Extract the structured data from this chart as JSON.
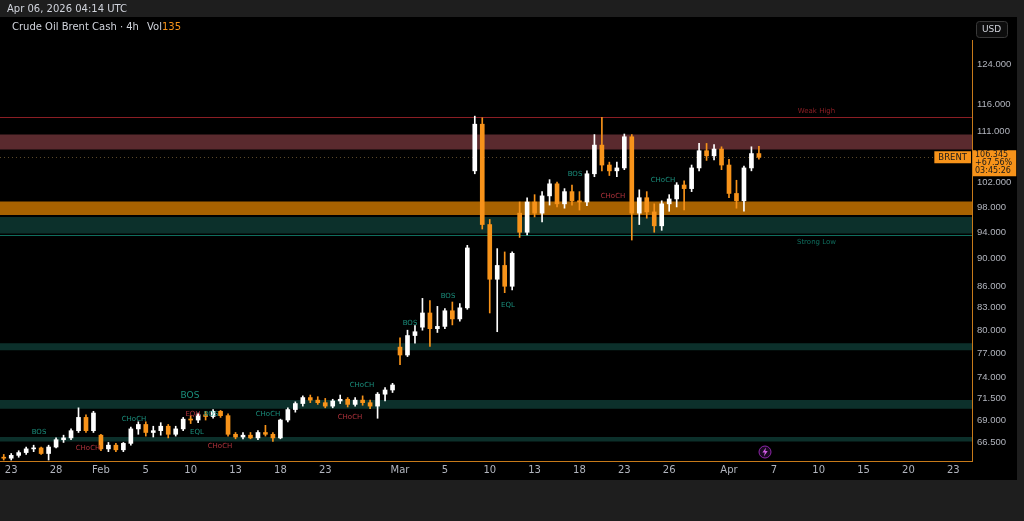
{
  "chart_data": {
    "type": "candlestick",
    "title": "Crude Oil Brent Cash · 4h",
    "ylabel": "USD",
    "annotations": [
      "Apr 06, 2026 04:14 UTC",
      "Vol",
      "135",
      "BOS",
      "CHoCH",
      "CHoCH",
      "BOS",
      "EQH",
      "BOS",
      "EQL",
      "CHoCH",
      "CHoCH",
      "CHoCH",
      "CHoCH",
      "BOS",
      "BOS",
      "EQL",
      "BOS",
      "CHoCH",
      "CHoCH",
      "106.345",
      "+67.56%",
      "03:45:26"
    ],
    "categories": [
      null,
      "23",
      null,
      null,
      null,
      null,
      null,
      "28",
      null,
      null,
      null,
      null,
      null,
      "Feb",
      null,
      null,
      null,
      null,
      null,
      "5",
      null,
      null,
      null,
      null,
      null,
      "10",
      null,
      null,
      null,
      null,
      null,
      "13",
      null,
      null,
      null,
      null,
      null,
      "18",
      null,
      null,
      null,
      null,
      null,
      "23",
      null,
      null,
      null,
      null,
      null,
      null,
      null,
      null,
      null,
      "Mar",
      null,
      null,
      null,
      null,
      null,
      "5",
      null,
      null,
      null,
      null,
      null,
      "10",
      null,
      null,
      null,
      null,
      null,
      "13",
      null,
      null,
      null,
      null,
      null,
      "18",
      null,
      null,
      null,
      null,
      null,
      "23",
      null,
      null,
      null,
      null,
      null,
      "26",
      null,
      null,
      null,
      null,
      null,
      null,
      null,
      "Apr",
      null,
      null,
      null,
      null,
      null,
      "7",
      null,
      null,
      null,
      null,
      null,
      "10",
      null,
      null,
      null,
      null,
      null,
      "15",
      null,
      null,
      null,
      null,
      null,
      "20",
      null,
      null,
      null,
      null,
      null,
      "23",
      null,
      null
    ],
    "ohlc": [
      [
        64.9,
        65.2,
        64.6,
        64.8
      ],
      [
        64.8,
        65.3,
        64.6,
        65.1
      ],
      [
        65.1,
        65.6,
        64.9,
        65.4
      ],
      [
        65.4,
        66.0,
        65.2,
        65.8
      ],
      [
        65.8,
        66.2,
        65.5,
        65.9
      ],
      [
        65.9,
        66.0,
        65.2,
        65.3
      ],
      [
        65.3,
        66.2,
        64.6,
        66.0
      ],
      [
        66.0,
        67.0,
        65.9,
        66.8
      ],
      [
        66.8,
        67.3,
        66.5,
        67.0
      ],
      [
        67.0,
        68.0,
        66.8,
        67.8
      ],
      [
        67.8,
        70.4,
        67.6,
        69.3
      ],
      [
        69.3,
        69.6,
        67.6,
        67.8
      ],
      [
        67.8,
        70.0,
        67.6,
        69.8
      ],
      [
        67.3,
        67.4,
        65.6,
        65.8
      ],
      [
        65.8,
        66.5,
        65.5,
        66.2
      ],
      [
        66.2,
        66.4,
        65.5,
        65.7
      ],
      [
        65.7,
        66.5,
        65.5,
        66.4
      ],
      [
        66.4,
        68.2,
        66.2,
        68.0
      ],
      [
        68.0,
        68.8,
        67.4,
        68.5
      ],
      [
        68.5,
        68.8,
        67.2,
        67.6
      ],
      [
        67.6,
        68.3,
        67.1,
        67.8
      ],
      [
        67.8,
        68.7,
        67.3,
        68.3
      ],
      [
        68.3,
        68.5,
        67.0,
        67.4
      ],
      [
        67.4,
        68.3,
        67.2,
        68.0
      ],
      [
        68.0,
        69.3,
        67.8,
        69.1
      ],
      [
        69.1,
        69.5,
        68.6,
        69.0
      ],
      [
        69.0,
        69.8,
        68.7,
        69.6
      ],
      [
        69.6,
        70.0,
        69.0,
        69.4
      ],
      [
        69.4,
        70.2,
        69.2,
        70.0
      ],
      [
        70.0,
        70.1,
        69.3,
        69.5
      ],
      [
        69.5,
        69.7,
        67.2,
        67.4
      ],
      [
        67.4,
        67.6,
        66.9,
        67.1
      ],
      [
        67.1,
        67.6,
        66.9,
        67.3
      ],
      [
        67.3,
        67.6,
        66.9,
        67.0
      ],
      [
        67.0,
        67.8,
        66.8,
        67.6
      ],
      [
        67.6,
        68.4,
        67.2,
        67.4
      ],
      [
        67.4,
        67.6,
        66.6,
        67.0
      ],
      [
        67.0,
        69.1,
        66.9,
        69.0
      ],
      [
        69.0,
        70.4,
        68.8,
        70.2
      ],
      [
        70.2,
        71.1,
        69.9,
        70.9
      ],
      [
        70.9,
        71.8,
        70.6,
        71.6
      ],
      [
        71.6,
        71.9,
        71.0,
        71.3
      ],
      [
        71.3,
        71.7,
        70.8,
        71.0
      ],
      [
        71.0,
        71.5,
        70.4,
        70.6
      ],
      [
        70.6,
        71.4,
        70.4,
        71.2
      ],
      [
        71.2,
        71.9,
        70.9,
        71.4
      ],
      [
        71.4,
        71.6,
        70.5,
        70.8
      ],
      [
        70.8,
        71.6,
        70.6,
        71.3
      ],
      [
        71.3,
        71.8,
        70.7,
        71.0
      ],
      [
        71.0,
        71.3,
        70.3,
        70.6
      ],
      [
        70.6,
        72.2,
        69.2,
        72.0
      ],
      [
        72.0,
        72.8,
        71.2,
        72.5
      ],
      [
        72.5,
        73.3,
        72.2,
        73.1
      ],
      [
        77.8,
        79.0,
        75.6,
        76.8
      ],
      [
        76.8,
        80.0,
        76.6,
        79.3
      ],
      [
        79.3,
        80.6,
        78.3,
        79.8
      ],
      [
        80.4,
        84.3,
        80.0,
        82.3
      ],
      [
        82.3,
        84.0,
        77.9,
        80.2
      ],
      [
        80.2,
        83.2,
        79.7,
        80.5
      ],
      [
        80.5,
        82.9,
        80.2,
        82.6
      ],
      [
        82.6,
        83.8,
        80.7,
        81.5
      ],
      [
        81.5,
        83.6,
        81.2,
        83.0
      ],
      [
        83.0,
        92.0,
        82.8,
        91.6
      ],
      [
        104.0,
        113.8,
        103.5,
        112.3
      ],
      [
        112.3,
        113.5,
        94.5,
        95.2
      ],
      [
        95.2,
        96.0,
        82.3,
        87.0
      ],
      [
        87.0,
        91.5,
        79.8,
        89.0
      ],
      [
        89.0,
        91.0,
        85.1,
        86.0
      ],
      [
        86.0,
        91.0,
        85.5,
        90.8
      ],
      [
        97.0,
        98.8,
        93.2,
        94.0
      ],
      [
        94.0,
        99.5,
        93.6,
        98.8
      ],
      [
        98.8,
        100.0,
        96.4,
        97.0
      ],
      [
        97.0,
        100.5,
        95.6,
        99.8
      ],
      [
        99.8,
        102.5,
        98.3,
        101.8
      ],
      [
        101.8,
        102.1,
        98.0,
        98.5
      ],
      [
        98.5,
        101.0,
        97.8,
        100.5
      ],
      [
        100.5,
        101.6,
        98.3,
        99.0
      ],
      [
        99.0,
        100.5,
        97.5,
        98.8
      ],
      [
        98.8,
        104.0,
        98.2,
        103.5
      ],
      [
        103.5,
        110.4,
        103.0,
        108.5
      ],
      [
        108.5,
        113.6,
        104.0,
        105.0
      ],
      [
        105.0,
        105.5,
        103.2,
        104.0
      ],
      [
        104.0,
        105.5,
        103.0,
        104.5
      ],
      [
        104.5,
        110.5,
        104.2,
        110.0
      ],
      [
        110.0,
        110.4,
        92.8,
        97.0
      ],
      [
        97.0,
        100.8,
        95.2,
        99.5
      ],
      [
        99.5,
        100.5,
        96.2,
        97.2
      ],
      [
        97.2,
        98.5,
        94.0,
        95.0
      ],
      [
        95.0,
        99.0,
        94.3,
        98.5
      ],
      [
        98.5,
        100.0,
        97.3,
        99.3
      ],
      [
        99.3,
        102.0,
        98.0,
        101.6
      ],
      [
        101.6,
        102.3,
        97.5,
        101.0
      ],
      [
        101.0,
        105.0,
        100.5,
        104.5
      ],
      [
        104.5,
        108.8,
        104.0,
        107.5
      ],
      [
        107.5,
        108.8,
        105.8,
        106.6
      ],
      [
        106.6,
        108.6,
        105.9,
        107.8
      ],
      [
        107.8,
        108.2,
        104.2,
        105.0
      ],
      [
        105.0,
        106.0,
        99.5,
        100.2
      ],
      [
        100.2,
        102.4,
        97.8,
        99.0
      ],
      [
        99.0,
        104.8,
        97.3,
        104.5
      ],
      [
        104.5,
        108.2,
        104.0,
        107.0
      ],
      [
        107.0,
        108.3,
        106.0,
        106.345
      ],
      null,
      null,
      null,
      null,
      null,
      null,
      null,
      null,
      null,
      null,
      null,
      null,
      null,
      null,
      null,
      null,
      null,
      null,
      null,
      null,
      null,
      null,
      null,
      null,
      null,
      null,
      null,
      null
    ],
    "colors": [
      "#f7931a",
      "#ffffff",
      "#ffffff",
      "#ffffff",
      "#ffffff",
      "#f7931a",
      "#ffffff",
      "#ffffff",
      "#ffffff",
      "#ffffff",
      "#ffffff",
      "#f7931a",
      "#ffffff",
      "#f7931a",
      "#ffffff",
      "#f7931a",
      "#ffffff",
      "#ffffff",
      "#ffffff",
      "#f7931a",
      "#ffffff",
      "#ffffff",
      "#f7931a",
      "#ffffff",
      "#ffffff",
      "#f7931a",
      "#ffffff",
      "#f7931a",
      "#ffffff",
      "#f7931a",
      "#f7931a",
      "#f7931a",
      "#ffffff",
      "#f7931a",
      "#ffffff",
      "#f7931a",
      "#f7931a",
      "#ffffff",
      "#ffffff",
      "#ffffff",
      "#ffffff",
      "#f7931a",
      "#f7931a",
      "#f7931a",
      "#ffffff",
      "#ffffff",
      "#f7931a",
      "#ffffff",
      "#f7931a",
      "#f7931a",
      "#ffffff",
      "#ffffff",
      "#ffffff",
      "#f7931a",
      "#ffffff",
      "#ffffff",
      "#ffffff",
      "#f7931a",
      "#ffffff",
      "#ffffff",
      "#f7931a",
      "#ffffff",
      "#ffffff",
      "#ffffff",
      "#f7931a",
      "#f7931a",
      "#ffffff",
      "#f7931a",
      "#ffffff",
      "#f7931a",
      "#ffffff",
      "#f7931a",
      "#ffffff",
      "#ffffff",
      "#f7931a",
      "#ffffff",
      "#f7931a",
      "#f7931a",
      "#ffffff",
      "#ffffff",
      "#f7931a",
      "#f7931a",
      "#ffffff",
      "#ffffff",
      "#f7931a",
      "#ffffff",
      "#f7931a",
      "#f7931a",
      "#ffffff",
      "#ffffff",
      "#ffffff",
      "#f7931a",
      "#ffffff",
      "#ffffff",
      "#f7931a",
      "#ffffff",
      "#f7931a",
      "#f7931a",
      "#f7931a",
      "#ffffff",
      "#ffffff",
      "#f7931a",
      null,
      null,
      null,
      null,
      null,
      null,
      null,
      null,
      null,
      null,
      null,
      null,
      null,
      null,
      null,
      null,
      null,
      null,
      null,
      null,
      null,
      null,
      null,
      null,
      null,
      null,
      null,
      null
    ],
    "ylim": [
      64.5,
      129
    ],
    "yticks": [
      {
        "value": 66.5,
        "label": "66.500"
      },
      {
        "value": 69,
        "label": "69.000"
      },
      {
        "value": 71.5,
        "label": "71.500"
      },
      {
        "value": 74,
        "label": "74.000"
      },
      {
        "value": 77,
        "label": "77.000"
      },
      {
        "value": 80,
        "label": "80.000"
      },
      {
        "value": 83,
        "label": "83.000"
      },
      {
        "value": 86,
        "label": "86.000"
      },
      {
        "value": 90,
        "label": "90.000"
      },
      {
        "value": 94,
        "label": "94.000"
      },
      {
        "value": 98,
        "label": "98.000"
      },
      {
        "value": 102,
        "label": "102.000"
      },
      {
        "value": 111,
        "label": "111.000"
      },
      {
        "value": 116,
        "label": "116.000"
      },
      {
        "value": 124,
        "label": "124.000"
      }
    ],
    "log": true,
    "bands": [
      {
        "axis": "y",
        "from": 107.7,
        "to": 110.4,
        "color": "#5a2a2e"
      },
      {
        "axis": "y",
        "from": 96.7,
        "to": 98.9,
        "color": "#a86200"
      },
      {
        "axis": "y",
        "from": 93.8,
        "to": 96.4,
        "color": "#0c302b"
      },
      {
        "axis": "y",
        "from": 77.4,
        "to": 78.3,
        "color": "#0c302b"
      },
      {
        "axis": "y",
        "from": 70.3,
        "to": 71.3,
        "color": "#0c302b"
      },
      {
        "axis": "y",
        "from": 66.6,
        "to": 67.1,
        "color": "#0c302b"
      }
    ],
    "ref_lines": [
      {
        "axis": "y",
        "value": 113.6,
        "label": "Weak High",
        "color": "#8b1e24"
      },
      {
        "axis": "y",
        "value": 93.6,
        "label": "Strong Low",
        "color": "#0f6e5e"
      },
      {
        "axis": "y",
        "value": 106.345,
        "label": "BRENT",
        "color": "#5c4a2a",
        "line_style": "dotted"
      }
    ]
  }
}
